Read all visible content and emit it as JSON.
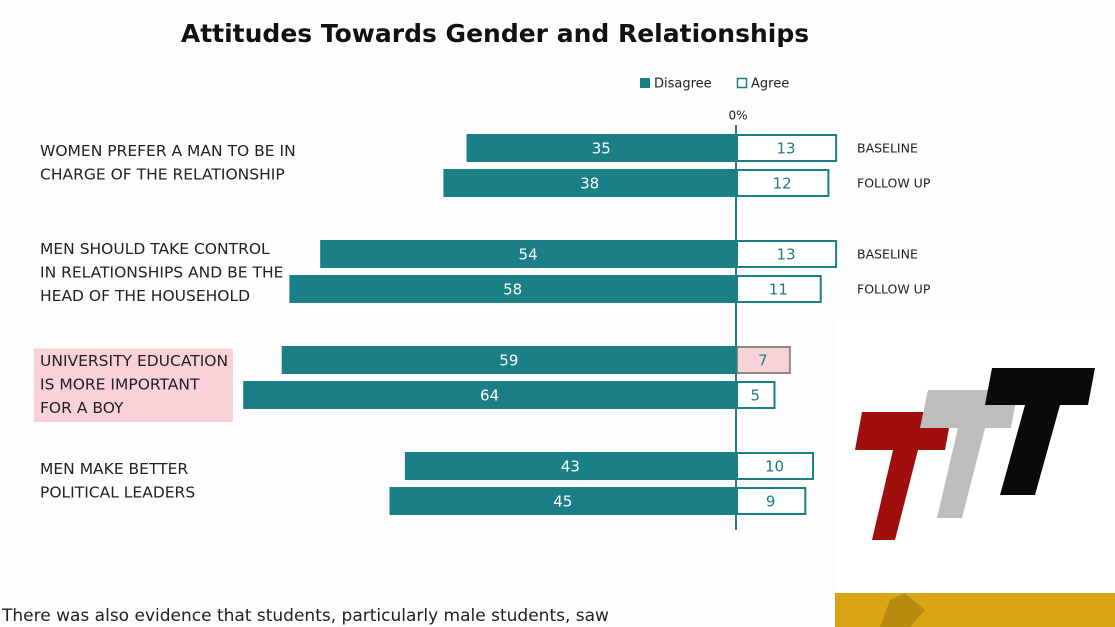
{
  "chart_data": {
    "type": "diverging_bar",
    "title": "Attitudes Towards Gender and Relationships",
    "groups": [
      {
        "lines": [
          "WOMEN PREFER A MAN TO BE IN",
          "CHARGE OF THE RELATIONSHIP"
        ]
      },
      {
        "lines": [
          "MEN SHOULD TAKE CONTROL",
          "IN RELATIONSHIPS AND BE THE",
          "HEAD OF THE HOUSEHOLD"
        ]
      },
      {
        "lines": [
          "UNIVERSITY EDUCATION",
          "IS MORE IMPORTANT",
          "FOR A BOY"
        ]
      },
      {
        "lines": [
          "MEN MAKE BETTER",
          "POLITICAL LEADERS"
        ]
      }
    ],
    "row_labels": [
      "BASELINE",
      "FOLLOW UP",
      "BASELINE",
      "FOLLOW UP",
      null,
      null,
      null,
      null
    ],
    "series": [
      {
        "name": "Disagree",
        "color": "#1a7f86",
        "direction": "left",
        "values": [
          35,
          38,
          54,
          58,
          59,
          64,
          43,
          45
        ]
      },
      {
        "name": "Agree",
        "color": "#1a7f86",
        "direction": "right",
        "values": [
          13,
          12,
          13,
          11,
          7,
          5,
          10,
          9
        ]
      }
    ],
    "xlim": [
      -70,
      30
    ],
    "xticks": [
      {
        "value": 0,
        "label": "0%"
      }
    ],
    "highlight_color": "#f8d2d6",
    "highlight_group": 2,
    "highlight_bar": {
      "series": 1,
      "index": 4
    },
    "caption": "There was also evidence that students, particularly male students, saw"
  }
}
